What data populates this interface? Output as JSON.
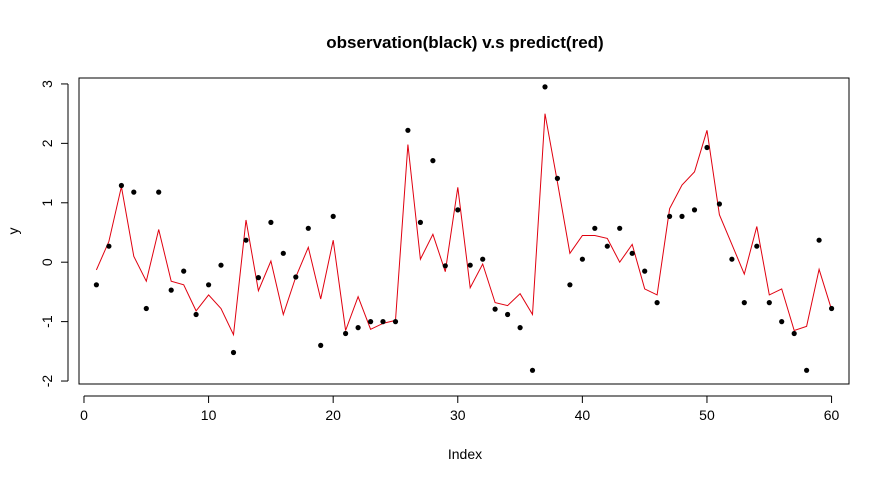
{
  "chart_data": {
    "type": "scatter",
    "title": "observation(black) v.s predict(red)",
    "xlabel": "Index",
    "ylabel": "y",
    "xlim": [
      -0.4,
      61.4
    ],
    "ylim": [
      -2.05,
      3.1
    ],
    "x_ticks": [
      0,
      10,
      20,
      30,
      40,
      50,
      60
    ],
    "y_ticks": [
      -2,
      -1,
      0,
      1,
      2,
      3
    ],
    "grid": false,
    "legend": "none",
    "series": [
      {
        "kind": "points",
        "color": "#000000",
        "x": [
          1,
          2,
          3,
          4,
          5,
          6,
          7,
          8,
          9,
          10,
          11,
          12,
          13,
          14,
          15,
          16,
          17,
          18,
          19,
          20,
          21,
          22,
          23,
          24,
          25,
          26,
          27,
          28,
          29,
          30,
          31,
          32,
          33,
          34,
          35,
          36,
          37,
          38,
          39,
          40,
          41,
          42,
          43,
          44,
          45,
          46,
          47,
          48,
          49,
          50,
          51,
          52,
          53,
          54,
          55,
          56,
          57,
          58,
          59,
          60
        ],
        "values": [
          -0.38,
          0.27,
          1.29,
          1.18,
          -0.78,
          1.18,
          -0.47,
          -0.15,
          -0.88,
          -0.38,
          -0.05,
          -1.52,
          0.37,
          -0.26,
          0.67,
          0.15,
          -0.25,
          0.57,
          -1.4,
          0.77,
          -1.2,
          -1.1,
          -1.0,
          -1.0,
          -1.0,
          2.22,
          0.67,
          1.71,
          -0.06,
          0.88,
          -0.05,
          0.05,
          -0.79,
          -0.88,
          -1.1,
          -1.82,
          2.95,
          1.41,
          -0.38,
          0.05,
          0.57,
          0.27,
          0.57,
          0.15,
          -0.15,
          -0.68,
          0.77,
          0.77,
          0.88,
          1.93,
          0.98,
          0.05,
          -0.68,
          0.27,
          -0.68,
          -1.0,
          -1.2,
          -1.82,
          0.37,
          -0.78
        ]
      },
      {
        "kind": "line",
        "color": "#e0000f",
        "x": [
          1,
          2,
          3,
          4,
          5,
          6,
          7,
          8,
          9,
          10,
          11,
          12,
          13,
          14,
          15,
          16,
          17,
          18,
          19,
          20,
          21,
          22,
          23,
          24,
          25,
          26,
          27,
          28,
          29,
          30,
          31,
          32,
          33,
          34,
          35,
          36,
          37,
          38,
          39,
          40,
          41,
          42,
          43,
          44,
          45,
          46,
          47,
          48,
          49,
          50,
          51,
          52,
          53,
          54,
          55,
          56,
          57,
          58,
          59,
          60
        ],
        "values": [
          -0.13,
          0.35,
          1.27,
          0.1,
          -0.32,
          0.55,
          -0.32,
          -0.38,
          -0.82,
          -0.55,
          -0.78,
          -1.22,
          0.71,
          -0.48,
          0.02,
          -0.88,
          -0.25,
          0.25,
          -0.62,
          0.37,
          -1.15,
          -0.58,
          -1.13,
          -1.03,
          -0.98,
          1.98,
          0.05,
          0.47,
          -0.16,
          1.26,
          -0.43,
          -0.03,
          -0.68,
          -0.73,
          -0.53,
          -0.88,
          2.5,
          1.35,
          0.15,
          0.45,
          0.45,
          0.4,
          0.0,
          0.3,
          -0.45,
          -0.55,
          0.9,
          1.3,
          1.52,
          2.22,
          0.8,
          0.3,
          -0.2,
          0.6,
          -0.55,
          -0.45,
          -1.15,
          -1.08,
          -0.12,
          -0.8
        ]
      }
    ]
  }
}
